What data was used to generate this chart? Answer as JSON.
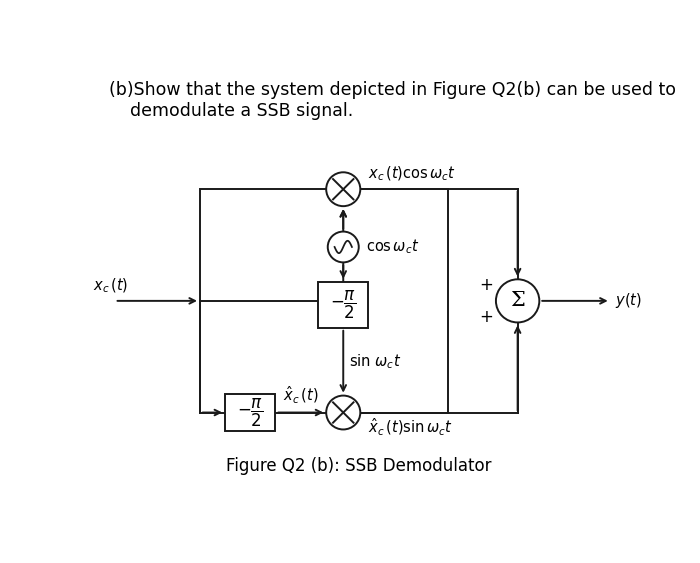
{
  "background_color": "#ffffff",
  "line_color": "#1a1a1a",
  "lw": 1.4,
  "title_line1": "(b)Show that the system depicted in Figure Q2(b) can be used to",
  "title_line2": "   demodulate a SSB signal.",
  "caption": "Figure Q2 (b): SSB Demodulator",
  "font_size_title": 12.5,
  "font_size_label": 10.5,
  "font_size_caption": 12,
  "font_size_box": 12,
  "font_size_plus": 12
}
